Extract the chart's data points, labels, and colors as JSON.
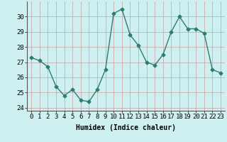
{
  "x": [
    0,
    1,
    2,
    3,
    4,
    5,
    6,
    7,
    8,
    9,
    10,
    11,
    12,
    13,
    14,
    15,
    16,
    17,
    18,
    19,
    20,
    21,
    22,
    23
  ],
  "y": [
    27.3,
    27.1,
    26.7,
    25.4,
    24.8,
    25.2,
    24.5,
    24.4,
    25.2,
    26.5,
    30.2,
    30.5,
    28.8,
    28.1,
    27.0,
    26.8,
    27.5,
    29.0,
    30.0,
    29.2,
    29.2,
    28.9,
    26.5,
    26.3
  ],
  "line_color": "#2e7d6e",
  "bg_color": "#cff0f0",
  "grid_color": "#c8a0a0",
  "xlabel": "Humidex (Indice chaleur)",
  "ylim": [
    23.8,
    31.0
  ],
  "xlim": [
    -0.5,
    23.5
  ],
  "yticks": [
    24,
    25,
    26,
    27,
    28,
    29,
    30
  ],
  "xticks": [
    0,
    1,
    2,
    3,
    4,
    5,
    6,
    7,
    8,
    9,
    10,
    11,
    12,
    13,
    14,
    15,
    16,
    17,
    18,
    19,
    20,
    21,
    22,
    23
  ],
  "xlabel_fontsize": 7,
  "tick_fontsize": 6.5,
  "line_width": 1.0,
  "marker_size": 2.5
}
